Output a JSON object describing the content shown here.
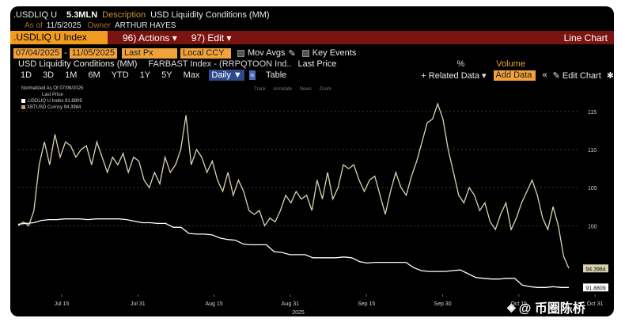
{
  "header": {
    "ticker": ".USDLIQ U",
    "value": "5.3MLN",
    "desc_label": "Description",
    "desc": "USD Liquidity Conditions (MM)",
    "asof_label": "As of",
    "asof": "11/5/2025",
    "owner_label": "Owner",
    "owner": "ARTHUR HAYES"
  },
  "toolbar": {
    "index": ".USDLIQ U Index",
    "actions": "96) Actions ▾",
    "edit": "97) Edit ▾",
    "chart_type": "Line Chart"
  },
  "controls": {
    "start_date": "07/04/2025",
    "end_date": "11/05/2025",
    "field": "Last Px",
    "currency": "Local CCY",
    "mov_avgs": "Mov Avgs",
    "key_events": "Key Events"
  },
  "series_row": {
    "name": "USD Liquidity Conditions (MM)",
    "index2": "FARBAST Index - (RRPQTOON Ind..",
    "last_price": "Last Price",
    "pct": "%",
    "volume": "Volume"
  },
  "periods": [
    "1D",
    "3D",
    "1M",
    "6M",
    "YTD",
    "1Y",
    "5Y",
    "Max"
  ],
  "frequency": "Daily ▼",
  "table_label": "Table",
  "related": "+ Related Data ▾",
  "add_data_placeholder": "Add Data",
  "edit_chart": "Edit Chart",
  "track_items": [
    "Track",
    "Annotate",
    "News",
    "Zoom"
  ],
  "legend": {
    "title": "Normalized As Of 07/09/2025",
    "sub": "Last Price",
    "s1": ".USDLIQ U Index 91.8809",
    "s2": "XBTUSD Curncy 94.3984"
  },
  "watermark": "@ 币圈陈桥",
  "colors": {
    "accent": "#f29b22",
    "bar": "#7a1410",
    "series_btc": "#d9d4b0",
    "series_liq": "#ffffff"
  },
  "chart_data": {
    "type": "line",
    "xlabel": "2025",
    "x_ticks": [
      "Jul 15",
      "Jul 31",
      "Aug 15",
      "Aug 31",
      "Sep 15",
      "Sep 30",
      "Oct 15",
      "Oct 31"
    ],
    "y_ticks": [
      100,
      105,
      110,
      115
    ],
    "ylim": [
      91,
      118
    ],
    "series": [
      {
        "name": "XBTUSD Curncy",
        "last": "94.3984",
        "values": [
          100,
          100.5,
          100,
          102,
          108,
          111,
          108,
          112,
          109,
          111,
          110.5,
          109,
          110,
          110.5,
          108,
          111,
          109,
          107,
          109,
          108,
          109.5,
          107,
          109,
          108.5,
          106,
          105,
          107,
          105.5,
          109,
          107,
          108,
          110,
          114.5,
          108,
          110,
          109,
          107,
          108.5,
          106,
          104.5,
          107,
          104,
          106,
          104.5,
          102,
          101.5,
          102,
          100,
          101,
          100.5,
          102,
          104,
          103,
          104.5,
          103.5,
          104,
          102,
          106,
          103.5,
          107,
          103.5,
          105,
          108,
          107.5,
          108,
          106,
          104.5,
          106,
          106.5,
          104,
          101.5,
          104.5,
          107,
          105,
          104,
          106.5,
          108.5,
          111,
          113.5,
          114,
          116,
          114,
          110,
          107,
          104,
          103,
          105,
          104,
          102,
          103,
          100.5,
          99.5,
          101.5,
          103,
          99.5,
          101,
          103,
          104.5,
          106,
          104,
          101,
          99.5,
          102.5,
          100,
          96,
          94.4
        ],
        "color": "#d9d4b0"
      },
      {
        "name": ".USDLIQ U Index",
        "last": "91.8809",
        "values": [
          100.2,
          100.3,
          100.4,
          100.7,
          100.8,
          100.8,
          100.9,
          100.9,
          100.9,
          100.8,
          100.9,
          100.9,
          100.9,
          100.9,
          100.8,
          100.6,
          100.4,
          100.4,
          100.3,
          100.3,
          99.8,
          99.8,
          99.0,
          98.9,
          98.9,
          98.8,
          98.4,
          98.2,
          98.1,
          97.6,
          97.5,
          97.5,
          97.5,
          96.6,
          96.5,
          96.2,
          96.2,
          96.2,
          95.8,
          95.8,
          95.8,
          95.8,
          95.9,
          95.8,
          95.3,
          95.1,
          95.2,
          95.2,
          95.2,
          95.2,
          95.2,
          94.5,
          94.1,
          94.0,
          94.0,
          94.0,
          94.1,
          94.2,
          93.7,
          93.2,
          93.1,
          93.0,
          93.0,
          93.1,
          93.1,
          92.2,
          92.0,
          91.9,
          91.9,
          92.0,
          91.9,
          91.9
        ],
        "color": "#ffffff"
      }
    ]
  }
}
